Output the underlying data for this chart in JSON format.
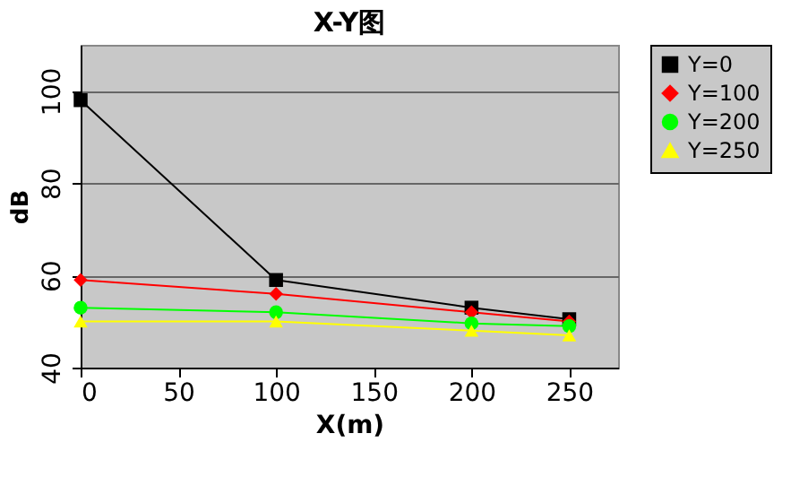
{
  "chart_data": {
    "type": "line",
    "title": "X-Y图",
    "xlabel": "X(m)",
    "ylabel": "dB",
    "x": [
      0,
      100,
      200,
      250
    ],
    "series": [
      {
        "name": "Y=0",
        "color": "#000000",
        "marker": "square",
        "values": [
          98,
          59,
          53,
          50.5
        ]
      },
      {
        "name": "Y=100",
        "color": "#ff0000",
        "marker": "diamond",
        "values": [
          59,
          56,
          52,
          50
        ]
      },
      {
        "name": "Y=200",
        "color": "#00ff00",
        "marker": "circle",
        "values": [
          53,
          52,
          49.6,
          49
        ]
      },
      {
        "name": "Y=250",
        "color": "#ffff00",
        "marker": "triangle",
        "values": [
          50,
          50,
          48,
          47
        ]
      }
    ],
    "xlim": [
      0,
      275
    ],
    "xticks": [
      0,
      50,
      100,
      150,
      200,
      250
    ],
    "ylim": [
      40,
      110
    ],
    "yticks": [
      40,
      60,
      80,
      100
    ],
    "grid": "y",
    "legend": "right",
    "line_style": "solid"
  }
}
